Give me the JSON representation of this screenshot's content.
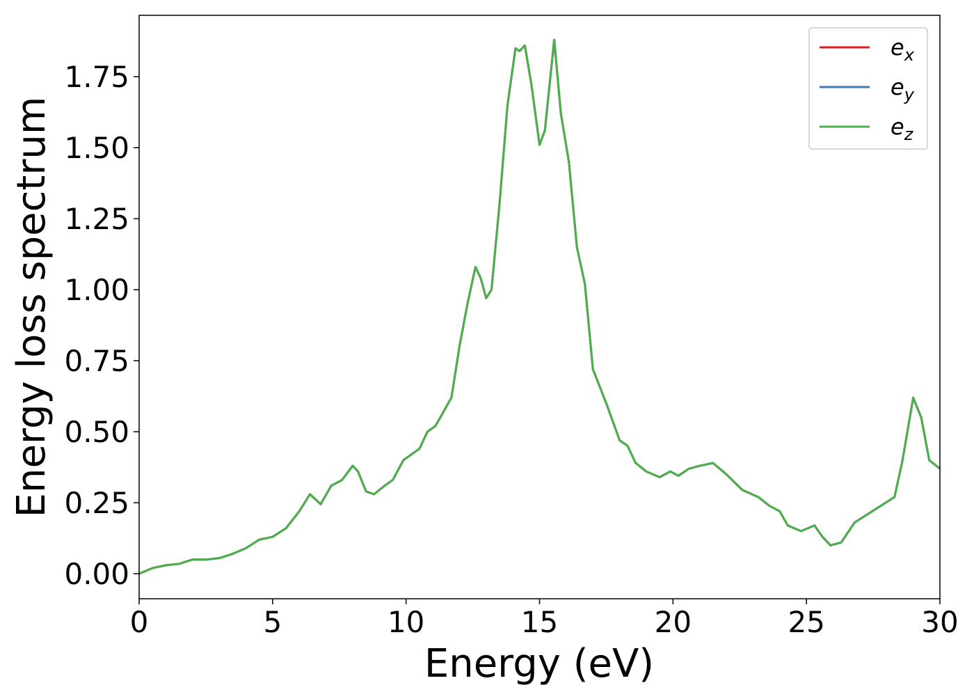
{
  "chart_data": {
    "type": "line",
    "xlabel": "Energy (eV)",
    "ylabel": "Energy loss spectrum",
    "x": [
      0,
      0.5,
      1,
      1.5,
      2,
      2.5,
      3,
      3.5,
      4,
      4.5,
      5,
      5.5,
      6,
      6.4,
      6.8,
      7.2,
      7.6,
      8.0,
      8.2,
      8.5,
      8.8,
      9.2,
      9.5,
      9.9,
      10.5,
      10.8,
      11.1,
      11.4,
      11.7,
      12.0,
      12.3,
      12.6,
      12.8,
      13.0,
      13.2,
      13.5,
      13.8,
      14.1,
      14.25,
      14.45,
      14.7,
      15.0,
      15.2,
      15.55,
      15.8,
      16.1,
      16.4,
      16.7,
      17.0,
      17.5,
      18.0,
      18.3,
      18.6,
      19.0,
      19.5,
      19.9,
      20.2,
      20.6,
      21.0,
      21.5,
      22.0,
      22.6,
      23.2,
      23.6,
      24.0,
      24.3,
      24.8,
      25.3,
      25.6,
      25.9,
      26.3,
      26.8,
      27.3,
      27.8,
      28.3,
      28.6,
      29.0,
      29.3,
      29.6,
      30.0
    ],
    "series": [
      {
        "name": "ex",
        "color": "#e41a1c",
        "values": [
          0,
          0.02,
          0.03,
          0.035,
          0.05,
          0.05,
          0.055,
          0.07,
          0.09,
          0.12,
          0.13,
          0.16,
          0.22,
          0.28,
          0.245,
          0.31,
          0.33,
          0.38,
          0.36,
          0.29,
          0.28,
          0.31,
          0.33,
          0.4,
          0.44,
          0.5,
          0.52,
          0.57,
          0.62,
          0.8,
          0.95,
          1.08,
          1.04,
          0.97,
          1.0,
          1.3,
          1.65,
          1.85,
          1.84,
          1.86,
          1.72,
          1.51,
          1.56,
          1.88,
          1.62,
          1.45,
          1.15,
          1.02,
          0.72,
          0.6,
          0.47,
          0.45,
          0.39,
          0.36,
          0.34,
          0.36,
          0.345,
          0.37,
          0.38,
          0.39,
          0.35,
          0.295,
          0.27,
          0.24,
          0.22,
          0.17,
          0.15,
          0.17,
          0.13,
          0.1,
          0.11,
          0.18,
          0.21,
          0.24,
          0.27,
          0.4,
          0.62,
          0.55,
          0.4,
          0.37
        ]
      },
      {
        "name": "ey",
        "color": "#377eb8",
        "values": [
          0,
          0.02,
          0.03,
          0.035,
          0.05,
          0.05,
          0.055,
          0.07,
          0.09,
          0.12,
          0.13,
          0.16,
          0.22,
          0.28,
          0.245,
          0.31,
          0.33,
          0.38,
          0.36,
          0.29,
          0.28,
          0.31,
          0.33,
          0.4,
          0.44,
          0.5,
          0.52,
          0.57,
          0.62,
          0.8,
          0.95,
          1.08,
          1.04,
          0.97,
          1.0,
          1.3,
          1.65,
          1.85,
          1.84,
          1.86,
          1.72,
          1.51,
          1.56,
          1.88,
          1.62,
          1.45,
          1.15,
          1.02,
          0.72,
          0.6,
          0.47,
          0.45,
          0.39,
          0.36,
          0.34,
          0.36,
          0.345,
          0.37,
          0.38,
          0.39,
          0.35,
          0.295,
          0.27,
          0.24,
          0.22,
          0.17,
          0.15,
          0.17,
          0.13,
          0.1,
          0.11,
          0.18,
          0.21,
          0.24,
          0.27,
          0.4,
          0.62,
          0.55,
          0.4,
          0.37
        ]
      },
      {
        "name": "ez",
        "color": "#4daf4a",
        "values": [
          0,
          0.02,
          0.03,
          0.035,
          0.05,
          0.05,
          0.055,
          0.07,
          0.09,
          0.12,
          0.13,
          0.16,
          0.22,
          0.28,
          0.245,
          0.31,
          0.33,
          0.38,
          0.36,
          0.29,
          0.28,
          0.31,
          0.33,
          0.4,
          0.44,
          0.5,
          0.52,
          0.57,
          0.62,
          0.8,
          0.95,
          1.08,
          1.04,
          0.97,
          1.0,
          1.3,
          1.65,
          1.85,
          1.84,
          1.86,
          1.72,
          1.51,
          1.56,
          1.88,
          1.62,
          1.45,
          1.15,
          1.02,
          0.72,
          0.6,
          0.47,
          0.45,
          0.39,
          0.36,
          0.34,
          0.36,
          0.345,
          0.37,
          0.38,
          0.39,
          0.35,
          0.295,
          0.27,
          0.24,
          0.22,
          0.17,
          0.15,
          0.17,
          0.13,
          0.1,
          0.11,
          0.18,
          0.21,
          0.24,
          0.27,
          0.4,
          0.62,
          0.55,
          0.4,
          0.37
        ]
      }
    ],
    "xlim": [
      0,
      30
    ],
    "xticks": [
      0,
      5,
      10,
      15,
      20,
      25,
      30
    ],
    "ylim": [
      -0.088,
      1.966
    ],
    "yticks": [
      {
        "value": 0,
        "label": "0.00"
      },
      {
        "value": 0.25,
        "label": "0.25"
      },
      {
        "value": 0.5,
        "label": "0.50"
      },
      {
        "value": 0.75,
        "label": "0.75"
      },
      {
        "value": 1,
        "label": "1.00"
      },
      {
        "value": 1.25,
        "label": "1.25"
      },
      {
        "value": 1.5,
        "label": "1.50"
      },
      {
        "value": 1.75,
        "label": "1.75"
      }
    ],
    "grid": false,
    "legend": "upper right"
  }
}
